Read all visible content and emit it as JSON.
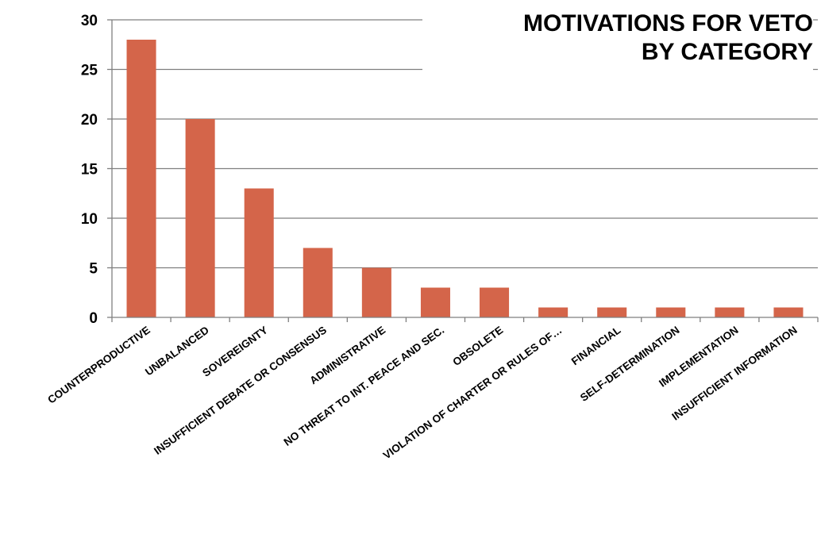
{
  "chart_data": {
    "type": "bar",
    "title_lines": [
      "MOTIVATIONS FOR VETO",
      "BY CATEGORY"
    ],
    "categories": [
      "COUNTERPRODUCTIVE",
      "UNBALANCED",
      "SOVEREIGNTY",
      "INSUFFICIENT DEBATE OR CONSENSUS",
      "ADMINISTRATIVE",
      "NO THREAT TO INT. PEACE AND SEC.",
      "OBSOLETE",
      "VIOLATION OF CHARTER OR RULES OF…",
      "FINANCIAL",
      "SELF-DETERMINATION",
      "IMPLEMENTATION",
      "INSUFFICIENT INFORMATION"
    ],
    "values": [
      28,
      20,
      13,
      7,
      5,
      3,
      3,
      1,
      1,
      1,
      1,
      1
    ],
    "ylim": [
      0,
      30
    ],
    "yticks": [
      0,
      5,
      10,
      15,
      20,
      25,
      30
    ],
    "grid": true,
    "colors": {
      "bar": "#D4654A",
      "grid": "#7f7f7f",
      "axis": "#7f7f7f"
    }
  }
}
